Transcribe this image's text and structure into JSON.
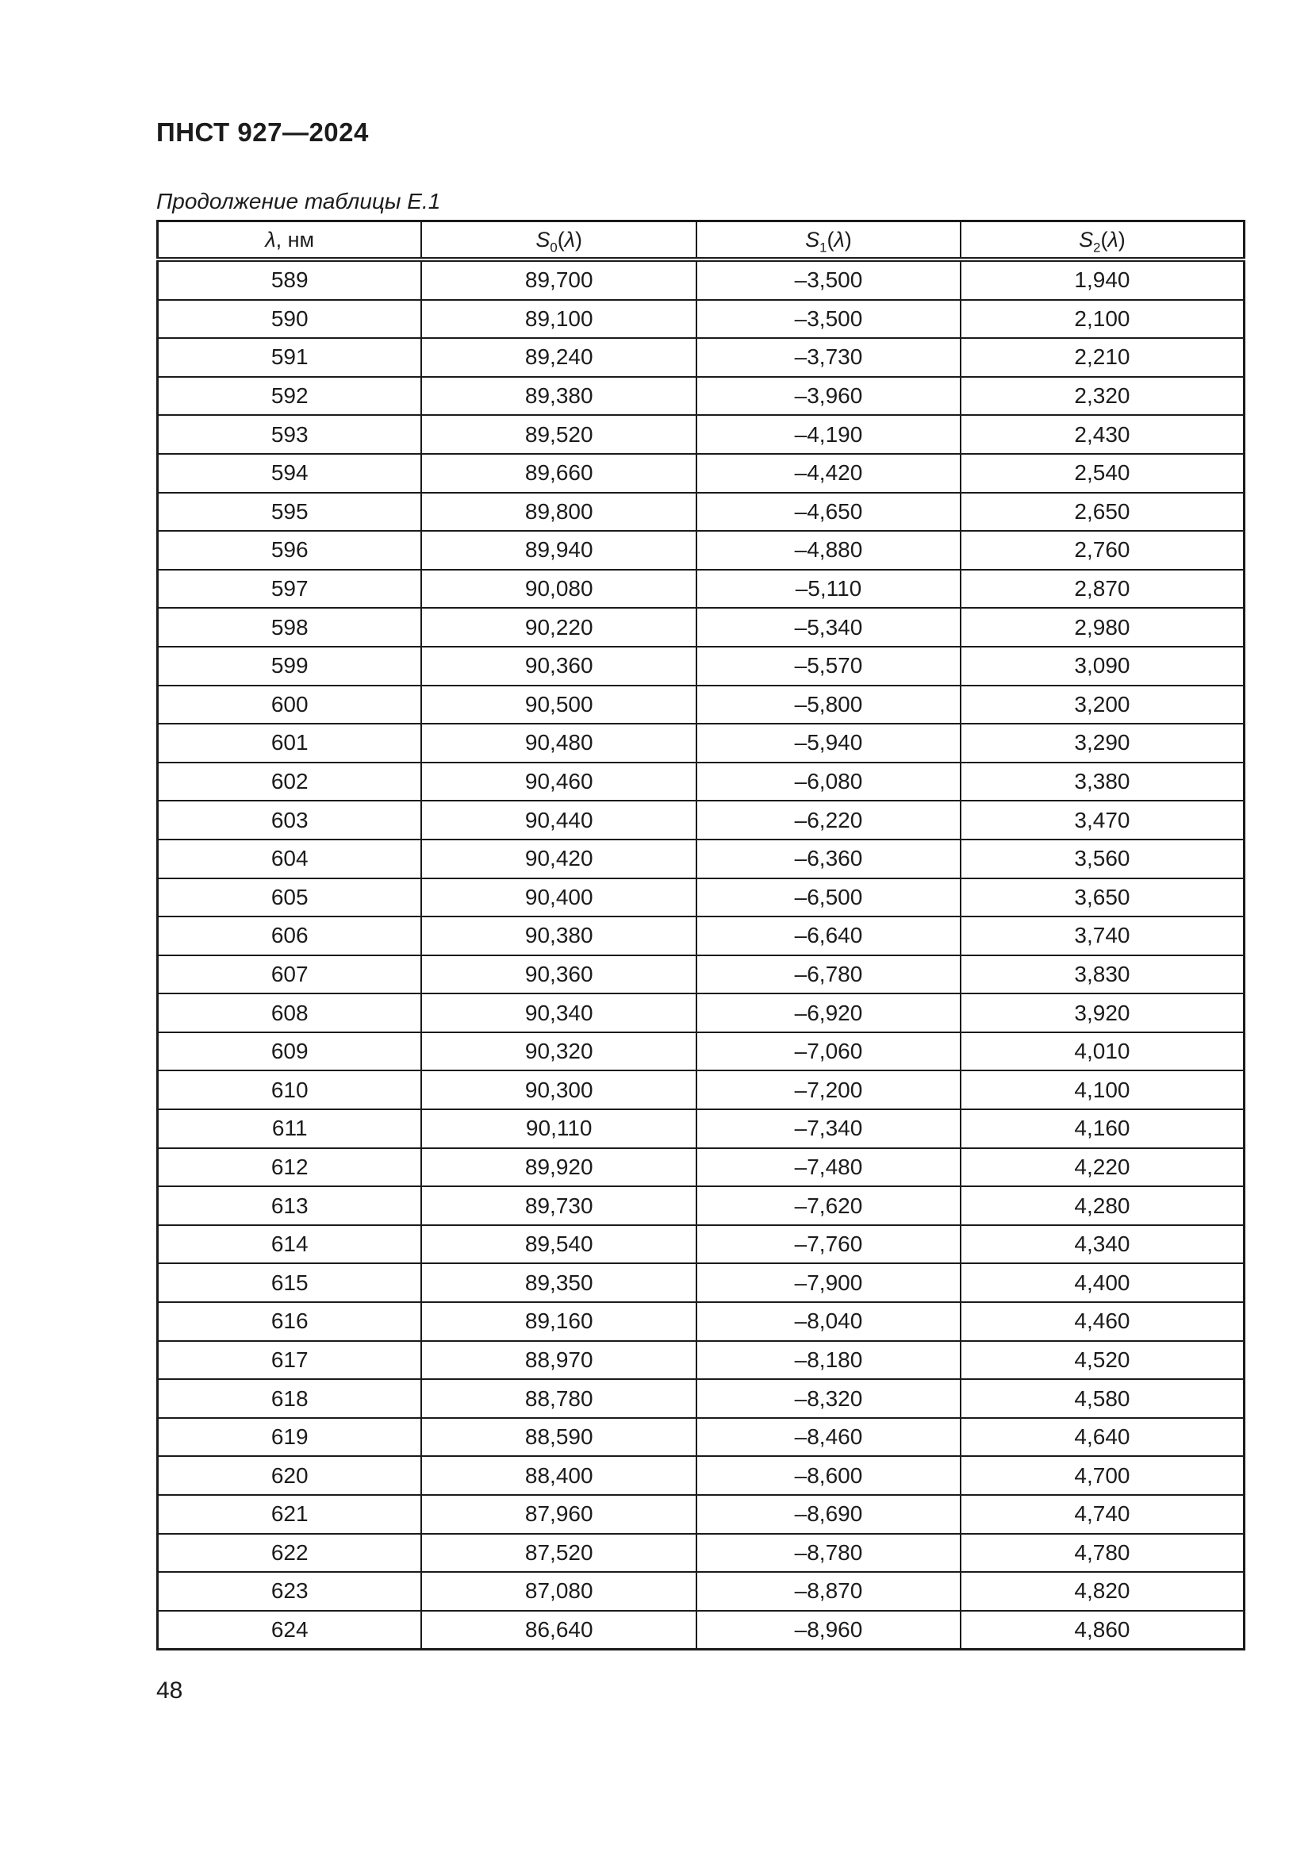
{
  "page": {
    "doc_header": "ПНСТ 927—2024",
    "table_caption": "Продолжение таблицы Е.1",
    "page_number": "48"
  },
  "table": {
    "headers": [
      [
        {
          "t": "λ",
          "i": true
        },
        {
          "t": ", нм"
        }
      ],
      [
        {
          "t": "S",
          "i": true
        },
        {
          "t": "0",
          "sub": true
        },
        {
          "t": "("
        },
        {
          "t": "λ",
          "i": true
        },
        {
          "t": ")"
        }
      ],
      [
        {
          "t": "S",
          "i": true
        },
        {
          "t": "1",
          "sub": true
        },
        {
          "t": "("
        },
        {
          "t": "λ",
          "i": true
        },
        {
          "t": ")"
        }
      ],
      [
        {
          "t": "S",
          "i": true
        },
        {
          "t": "2",
          "sub": true
        },
        {
          "t": "("
        },
        {
          "t": "λ",
          "i": true
        },
        {
          "t": ")"
        }
      ]
    ],
    "rows": [
      [
        "589",
        "89,700",
        "–3,500",
        "1,940"
      ],
      [
        "590",
        "89,100",
        "–3,500",
        "2,100"
      ],
      [
        "591",
        "89,240",
        "–3,730",
        "2,210"
      ],
      [
        "592",
        "89,380",
        "–3,960",
        "2,320"
      ],
      [
        "593",
        "89,520",
        "–4,190",
        "2,430"
      ],
      [
        "594",
        "89,660",
        "–4,420",
        "2,540"
      ],
      [
        "595",
        "89,800",
        "–4,650",
        "2,650"
      ],
      [
        "596",
        "89,940",
        "–4,880",
        "2,760"
      ],
      [
        "597",
        "90,080",
        "–5,110",
        "2,870"
      ],
      [
        "598",
        "90,220",
        "–5,340",
        "2,980"
      ],
      [
        "599",
        "90,360",
        "–5,570",
        "3,090"
      ],
      [
        "600",
        "90,500",
        "–5,800",
        "3,200"
      ],
      [
        "601",
        "90,480",
        "–5,940",
        "3,290"
      ],
      [
        "602",
        "90,460",
        "–6,080",
        "3,380"
      ],
      [
        "603",
        "90,440",
        "–6,220",
        "3,470"
      ],
      [
        "604",
        "90,420",
        "–6,360",
        "3,560"
      ],
      [
        "605",
        "90,400",
        "–6,500",
        "3,650"
      ],
      [
        "606",
        "90,380",
        "–6,640",
        "3,740"
      ],
      [
        "607",
        "90,360",
        "–6,780",
        "3,830"
      ],
      [
        "608",
        "90,340",
        "–6,920",
        "3,920"
      ],
      [
        "609",
        "90,320",
        "–7,060",
        "4,010"
      ],
      [
        "610",
        "90,300",
        "–7,200",
        "4,100"
      ],
      [
        "611",
        "90,110",
        "–7,340",
        "4,160"
      ],
      [
        "612",
        "89,920",
        "–7,480",
        "4,220"
      ],
      [
        "613",
        "89,730",
        "–7,620",
        "4,280"
      ],
      [
        "614",
        "89,540",
        "–7,760",
        "4,340"
      ],
      [
        "615",
        "89,350",
        "–7,900",
        "4,400"
      ],
      [
        "616",
        "89,160",
        "–8,040",
        "4,460"
      ],
      [
        "617",
        "88,970",
        "–8,180",
        "4,520"
      ],
      [
        "618",
        "88,780",
        "–8,320",
        "4,580"
      ],
      [
        "619",
        "88,590",
        "–8,460",
        "4,640"
      ],
      [
        "620",
        "88,400",
        "–8,600",
        "4,700"
      ],
      [
        "621",
        "87,960",
        "–8,690",
        "4,740"
      ],
      [
        "622",
        "87,520",
        "–8,780",
        "4,780"
      ],
      [
        "623",
        "87,080",
        "–8,870",
        "4,820"
      ],
      [
        "624",
        "86,640",
        "–8,960",
        "4,860"
      ]
    ]
  }
}
